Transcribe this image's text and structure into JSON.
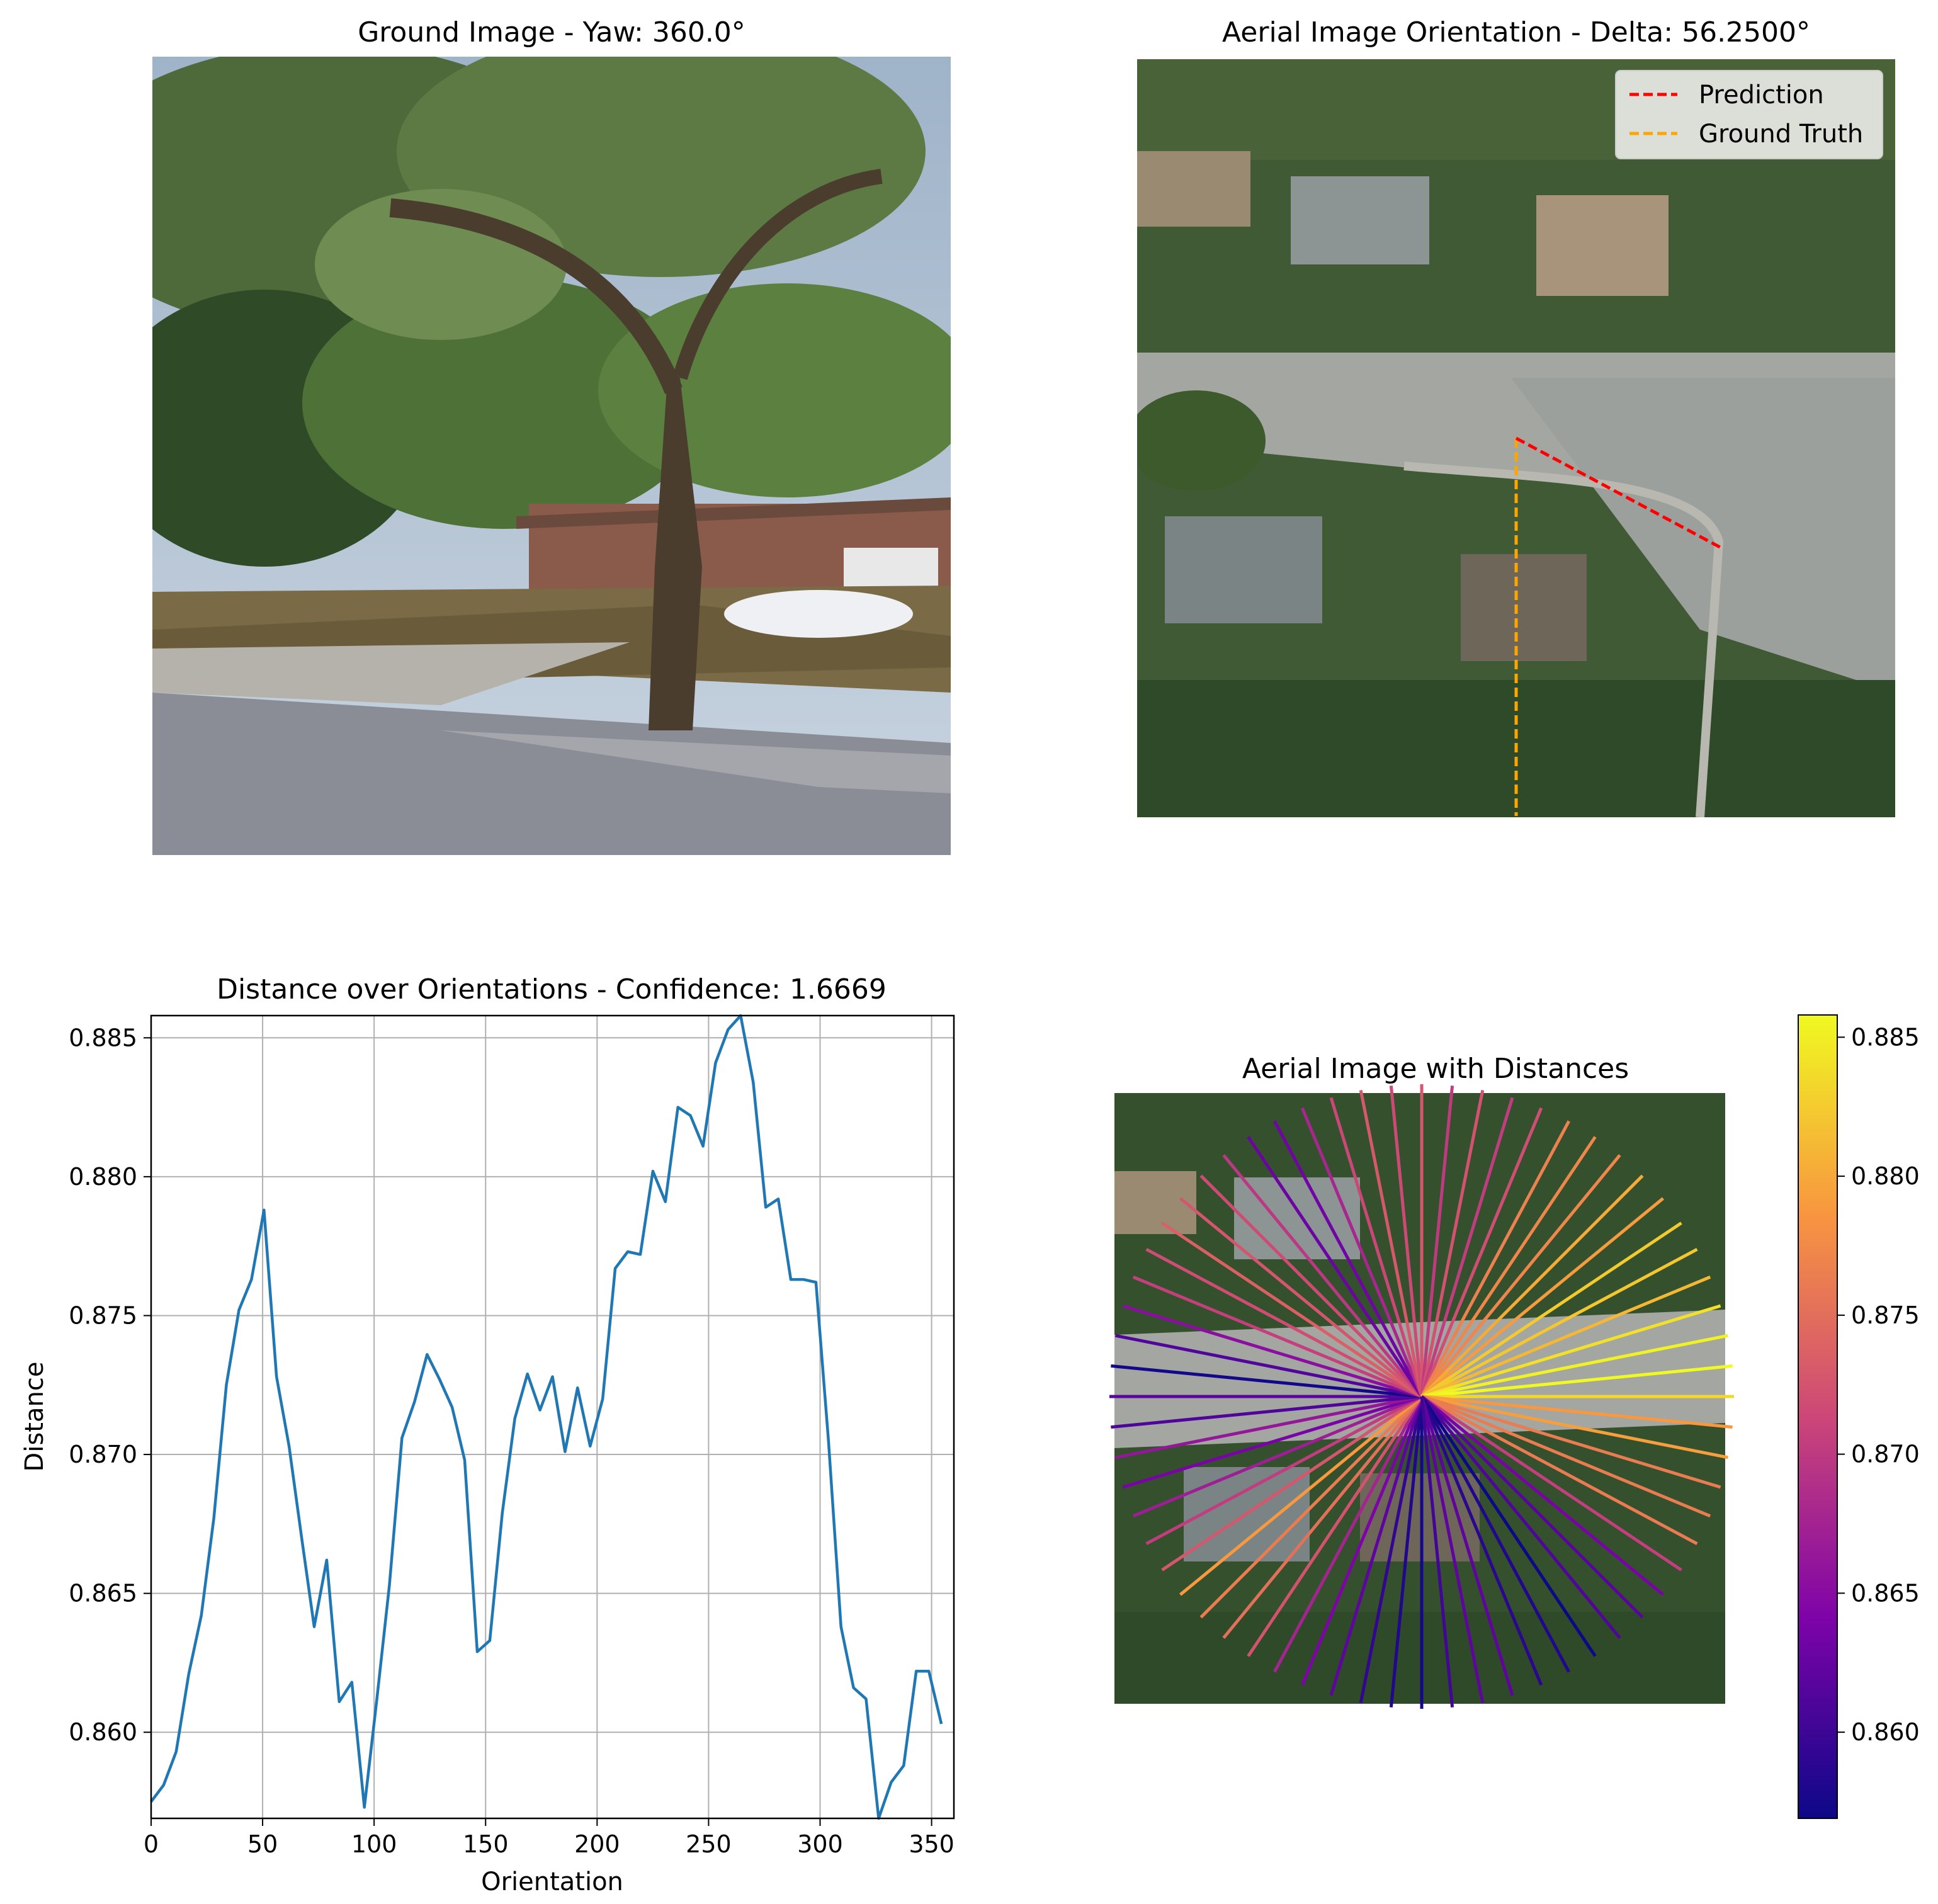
{
  "panels": {
    "ground": {
      "title": "Ground Image - Yaw: 360.0°"
    },
    "aerial": {
      "title": "Aerial Image Orientation - Delta: 56.2500°",
      "legend": [
        "Prediction",
        "Ground Truth"
      ],
      "prediction_angle_deg": 56.25,
      "ground_truth_angle_deg": 0
    },
    "dist": {
      "title": "Distance over Orientations - Confidence: 1.6669"
    },
    "polar": {
      "title": "Aerial Image with Distances"
    }
  },
  "colors": {
    "line": "#1f77b4",
    "prediction": "#ff0000",
    "ground_truth": "#ffa500",
    "grid": "#b0b0b0"
  },
  "chart_data": [
    {
      "type": "line",
      "title": "Distance over Orientations - Confidence: 1.6669",
      "xlabel": "Orientation",
      "ylabel": "Distance",
      "xlim": [
        0,
        360
      ],
      "ylim": [
        0.8569,
        0.8858
      ],
      "xticks": [
        "0",
        "50",
        "100",
        "150",
        "200",
        "250",
        "300",
        "350"
      ],
      "yticks": [
        "0.860",
        "0.865",
        "0.870",
        "0.875",
        "0.880",
        "0.885"
      ],
      "grid": true,
      "x": [
        0,
        5.625,
        11.25,
        16.875,
        22.5,
        28.125,
        33.75,
        39.375,
        45,
        50.625,
        56.25,
        61.875,
        67.5,
        73.125,
        78.75,
        84.375,
        90,
        95.625,
        101.25,
        106.875,
        112.5,
        118.125,
        123.75,
        129.375,
        135,
        140.625,
        146.25,
        151.875,
        157.5,
        163.125,
        168.75,
        174.375,
        180,
        185.625,
        191.25,
        196.875,
        202.5,
        208.125,
        213.75,
        219.375,
        225,
        230.625,
        236.25,
        241.875,
        247.5,
        253.125,
        258.75,
        264.375,
        270,
        275.625,
        281.25,
        286.875,
        292.5,
        298.125,
        303.75,
        309.375,
        315,
        320.625,
        326.25,
        331.875,
        337.5,
        343.125,
        348.75,
        354.375
      ],
      "values": [
        0.8575,
        0.8581,
        0.8593,
        0.8621,
        0.8642,
        0.8677,
        0.8725,
        0.8752,
        0.8763,
        0.8788,
        0.8728,
        0.8703,
        0.867,
        0.8638,
        0.8662,
        0.8611,
        0.8618,
        0.8573,
        0.8612,
        0.8653,
        0.8706,
        0.8719,
        0.8736,
        0.8727,
        0.8717,
        0.8698,
        0.8629,
        0.8633,
        0.8679,
        0.8713,
        0.8729,
        0.8716,
        0.8728,
        0.8701,
        0.8724,
        0.8703,
        0.872,
        0.8767,
        0.8773,
        0.8772,
        0.8802,
        0.8791,
        0.8825,
        0.8822,
        0.8811,
        0.8841,
        0.8853,
        0.8858,
        0.8834,
        0.8789,
        0.8792,
        0.8763,
        0.8763,
        0.8762,
        0.8705,
        0.8638,
        0.8616,
        0.8612,
        0.8569,
        0.8582,
        0.8588,
        0.8622,
        0.8622,
        0.8603
      ]
    },
    {
      "type": "scatter",
      "title": "Aerial Image with Distances",
      "colormap": "plasma",
      "colorbar_range": [
        0.8569,
        0.8858
      ],
      "colorbar_ticks": [
        "0.860",
        "0.865",
        "0.870",
        "0.875",
        "0.880",
        "0.885"
      ],
      "note_values_per_orientation": "same as distance series"
    }
  ]
}
